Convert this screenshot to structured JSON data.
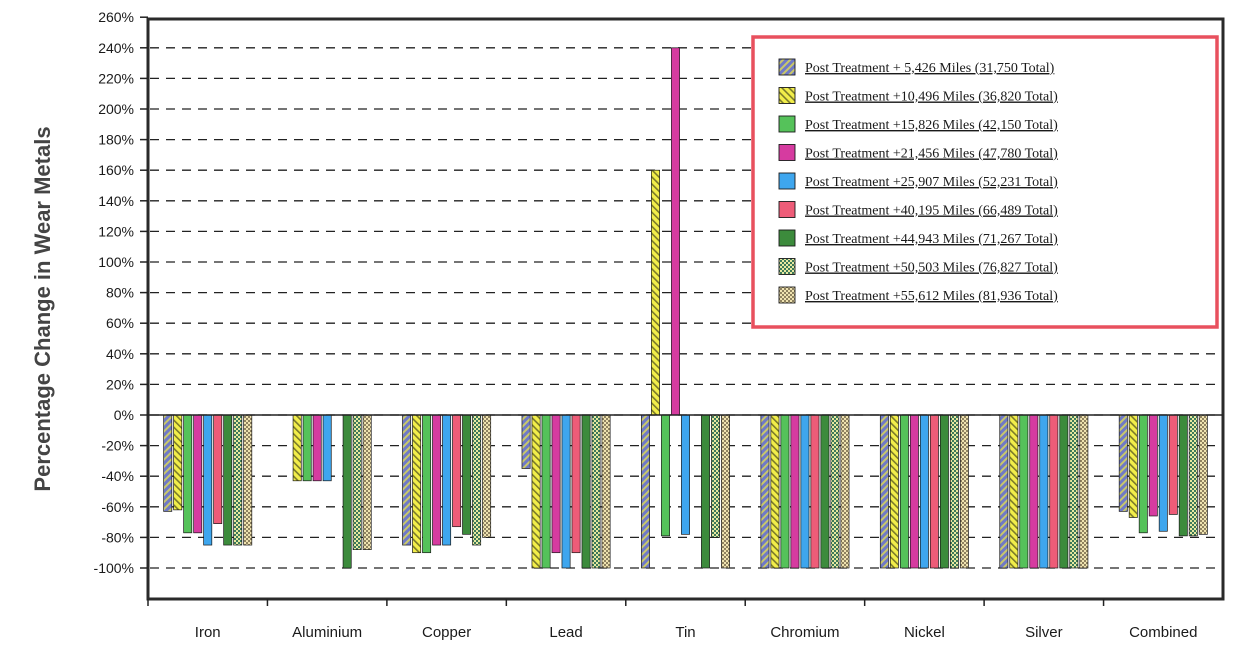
{
  "chart_data": {
    "type": "bar",
    "title": "",
    "ylabel": "Percentage Change in Wear Metals",
    "xlabel": "",
    "ylim": [
      -120,
      260
    ],
    "ytick_step": 20,
    "ytick_suffix": "%",
    "grid": "dashed-horizontal",
    "legend_position": "top-right",
    "categories": [
      "Iron",
      "Aluminium",
      "Copper",
      "Lead",
      "Tin",
      "Chromium",
      "Nickel",
      "Silver",
      "Combined"
    ],
    "series": [
      {
        "name": "Post Treatment + 5,426 Miles (31,750 Total)",
        "color": "#6f79c8",
        "pattern": "hatch-blue",
        "values": [
          -63,
          0,
          -85,
          -35,
          -100,
          -100,
          -100,
          -100,
          -63
        ]
      },
      {
        "name": "Post Treatment +10,496 Miles (36,820 Total)",
        "color": "#f2ee4a",
        "pattern": "hatch-yellow",
        "values": [
          -62,
          -43,
          -90,
          -100,
          160,
          -100,
          -100,
          -100,
          -67
        ]
      },
      {
        "name": "Post Treatment +15,826 Miles (42,150 Total)",
        "color": "#55c25a",
        "pattern": "solid",
        "values": [
          -77,
          -43,
          -90,
          -100,
          -79,
          -100,
          -100,
          -100,
          -77
        ]
      },
      {
        "name": "Post Treatment +21,456 Miles (47,780 Total)",
        "color": "#d63ba0",
        "pattern": "solid",
        "values": [
          -77,
          -43,
          -85,
          -90,
          240,
          -100,
          -100,
          -100,
          -66
        ]
      },
      {
        "name": "Post Treatment +25,907 Miles (52,231 Total)",
        "color": "#3ea6ee",
        "pattern": "solid",
        "values": [
          -85,
          -43,
          -85,
          -100,
          -78,
          -100,
          -100,
          -100,
          -76
        ]
      },
      {
        "name": "Post Treatment +40,195 Miles (66,489 Total)",
        "color": "#ee5c78",
        "pattern": "solid",
        "values": [
          -71,
          0,
          -73,
          -90,
          0,
          -100,
          -100,
          -100,
          -65
        ]
      },
      {
        "name": "Post Treatment +44,943 Miles (71,267 Total)",
        "color": "#3c8b3c",
        "pattern": "solid",
        "values": [
          -85,
          -100,
          -78,
          -100,
          -100,
          -100,
          -100,
          -100,
          -79
        ]
      },
      {
        "name": "Post Treatment +50,503 Miles (76,827 Total)",
        "color": "#c8c89a",
        "pattern": "check-green",
        "values": [
          -85,
          -88,
          -85,
          -100,
          -80,
          -100,
          -100,
          -100,
          -79
        ]
      },
      {
        "name": "Post Treatment +55,612 Miles (81,936 Total)",
        "color": "#d6c890",
        "pattern": "check-tan",
        "values": [
          -85,
          -88,
          -80,
          -100,
          -100,
          -100,
          -100,
          -100,
          -78
        ]
      }
    ]
  }
}
